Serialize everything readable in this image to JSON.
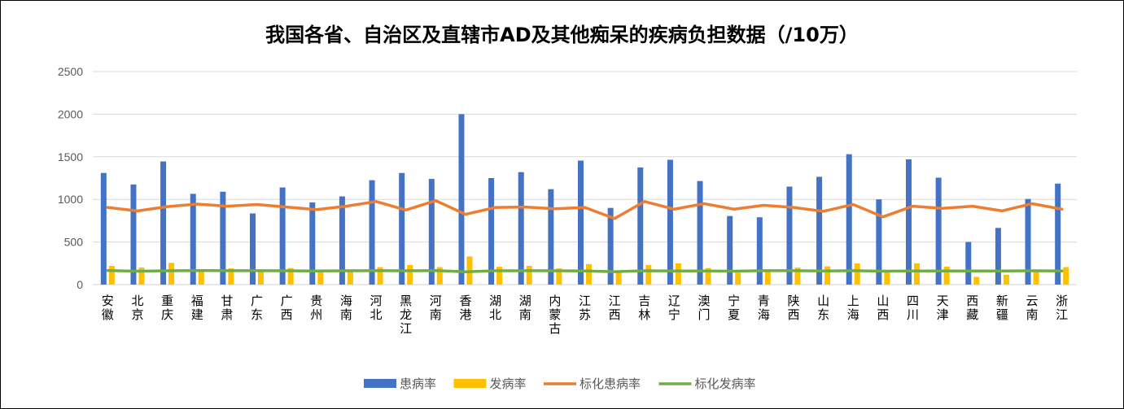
{
  "chart_data": {
    "type": "bar",
    "title": "我国各省、自治区及直辖市AD及其他痴呆的疾病负担数据（/10万）",
    "xlabel": "",
    "ylabel": "",
    "ylim": [
      0,
      2500
    ],
    "yticks": [
      "0",
      "500",
      "1000",
      "1500",
      "2000",
      "2500"
    ],
    "grid": true,
    "legend_position": "bottom",
    "categories": [
      "安徽",
      "北京",
      "重庆",
      "福建",
      "甘肃",
      "广东",
      "广西",
      "贵州",
      "海南",
      "河北",
      "黑龙江",
      "河南",
      "香港",
      "湖北",
      "湖南",
      "内蒙古",
      "江苏",
      "江西",
      "吉林",
      "辽宁",
      "澳门",
      "宁夏",
      "青海",
      "陕西",
      "山东",
      "上海",
      "山西",
      "四川",
      "天津",
      "西藏",
      "新疆",
      "云南",
      "浙江"
    ],
    "series": [
      {
        "name": "患病率",
        "type": "bar",
        "color": "#4472C4",
        "values": [
          1310,
          1175,
          1445,
          1065,
          1090,
          835,
          1140,
          965,
          1035,
          1225,
          1310,
          1240,
          2000,
          1250,
          1320,
          1120,
          1455,
          900,
          1375,
          1465,
          1215,
          805,
          790,
          1150,
          1265,
          1530,
          1000,
          1470,
          1255,
          500,
          665,
          1005,
          1185
        ]
      },
      {
        "name": "发病率",
        "type": "bar",
        "color": "#FFC000",
        "values": [
          220,
          200,
          255,
          150,
          190,
          160,
          195,
          150,
          155,
          205,
          230,
          205,
          330,
          210,
          220,
          190,
          240,
          140,
          230,
          250,
          195,
          140,
          155,
          200,
          215,
          250,
          160,
          250,
          210,
          90,
          115,
          165,
          205
        ]
      },
      {
        "name": "标化患病率",
        "type": "line",
        "color": "#ED7D31",
        "values": [
          905,
          865,
          915,
          945,
          920,
          940,
          910,
          880,
          920,
          975,
          875,
          985,
          825,
          905,
          910,
          890,
          905,
          775,
          975,
          885,
          950,
          885,
          930,
          905,
          860,
          940,
          795,
          920,
          895,
          920,
          865,
          950,
          885
        ]
      },
      {
        "name": "标化发病率",
        "type": "line",
        "color": "#70AD47",
        "values": [
          165,
          158,
          162,
          165,
          163,
          163,
          162,
          160,
          162,
          164,
          162,
          165,
          150,
          162,
          163,
          162,
          160,
          152,
          162,
          160,
          160,
          158,
          163,
          163,
          160,
          163,
          157,
          160,
          160,
          160,
          160,
          162,
          160
        ]
      }
    ]
  }
}
